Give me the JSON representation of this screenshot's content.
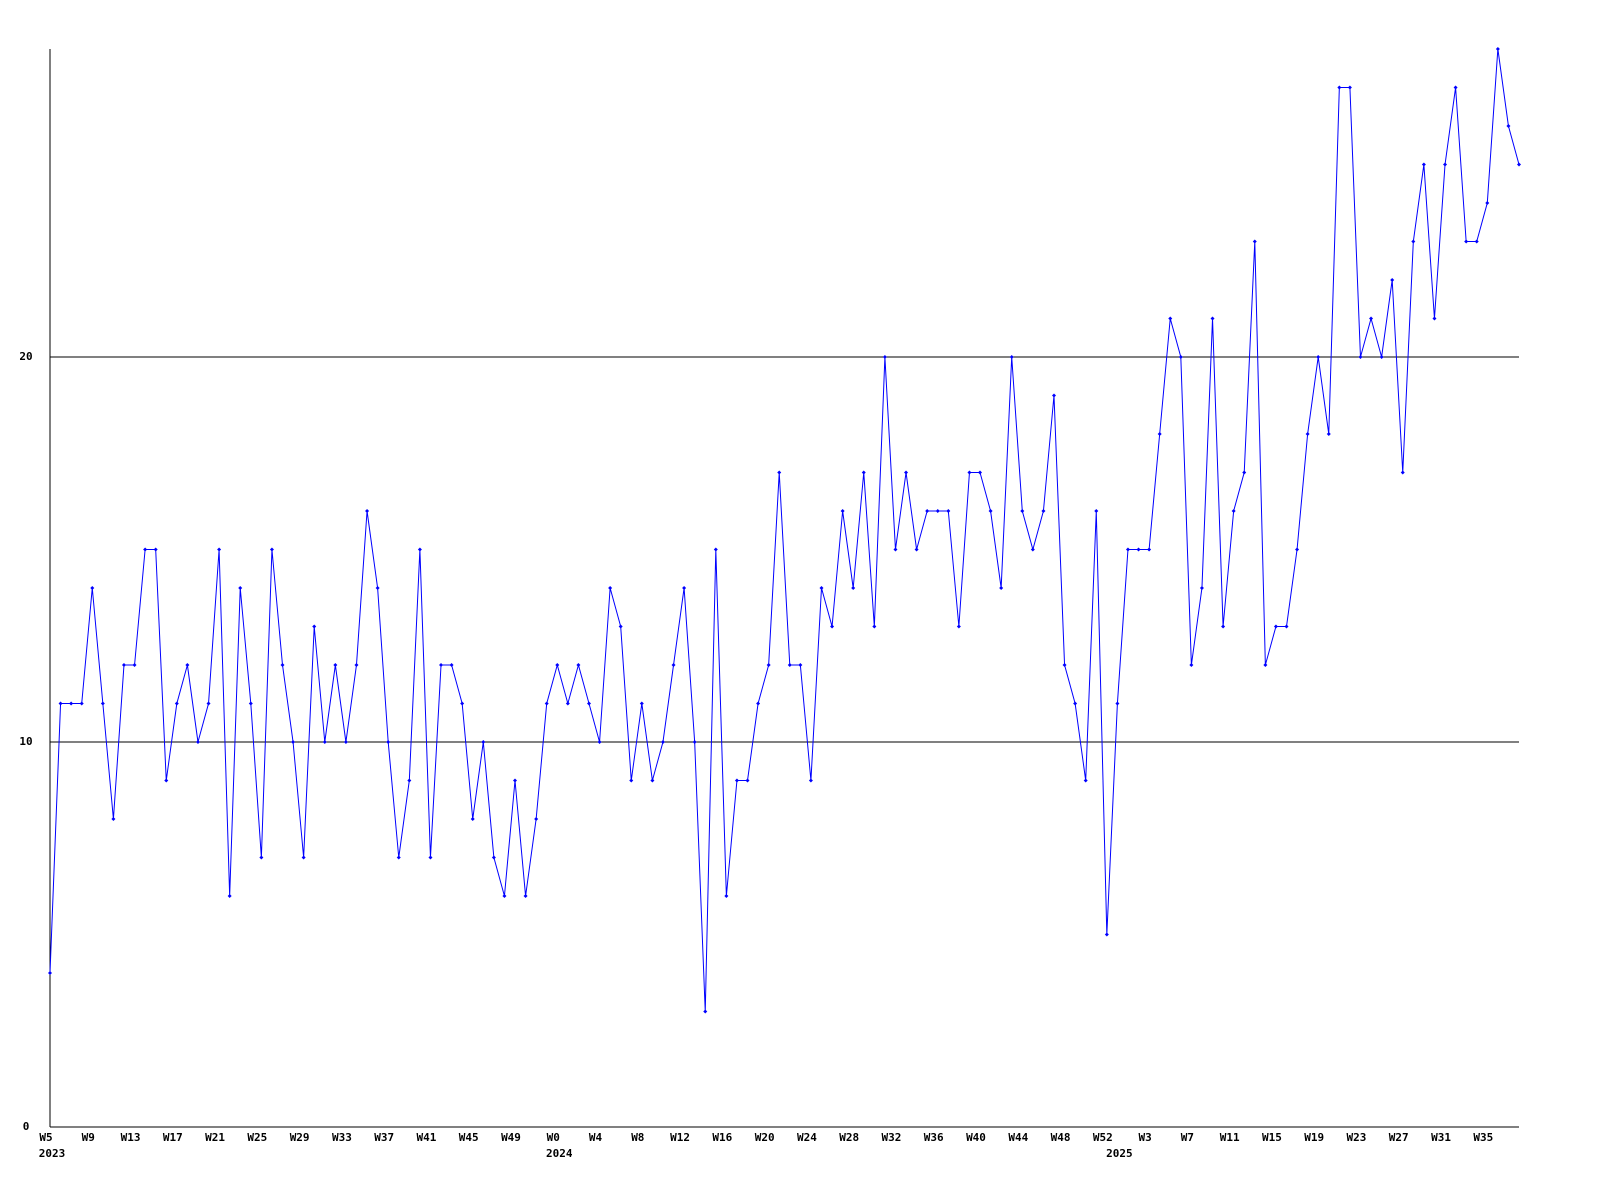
{
  "chart_data": {
    "type": "line",
    "categories": [
      "W5",
      null,
      null,
      null,
      "W9",
      null,
      null,
      null,
      "W13",
      null,
      null,
      null,
      "W17",
      null,
      null,
      null,
      "W21",
      null,
      null,
      null,
      "W25",
      null,
      null,
      null,
      "W29",
      null,
      null,
      null,
      "W33",
      null,
      null,
      null,
      "W37",
      null,
      null,
      null,
      "W41",
      null,
      null,
      null,
      "W45",
      null,
      null,
      null,
      "W49",
      null,
      null,
      null,
      "W0",
      null,
      null,
      null,
      "W4",
      null,
      null,
      null,
      "W8",
      null,
      null,
      null,
      "W12",
      null,
      null,
      null,
      "W16",
      null,
      null,
      null,
      "W20",
      null,
      null,
      null,
      "W24",
      null,
      null,
      null,
      "W28",
      null,
      null,
      null,
      "W32",
      null,
      null,
      null,
      "W36",
      null,
      null,
      null,
      "W40",
      null,
      null,
      null,
      "W44",
      null,
      null,
      null,
      "W48",
      null,
      null,
      null,
      "W52",
      null,
      null,
      null,
      "W3",
      null,
      null,
      null,
      "W7",
      null,
      null,
      null,
      "W11",
      null,
      null,
      null,
      "W15",
      null,
      null,
      null,
      "W19",
      null,
      null,
      null,
      "W23",
      null,
      null,
      null,
      "W27",
      null,
      null,
      null,
      "W31",
      null,
      null,
      null,
      "W35",
      null,
      null,
      null
    ],
    "year_labels": [
      "2023",
      null,
      null,
      null,
      null,
      null,
      null,
      null,
      null,
      null,
      null,
      null,
      null,
      null,
      null,
      null,
      null,
      null,
      null,
      null,
      null,
      null,
      null,
      null,
      null,
      null,
      null,
      null,
      null,
      null,
      null,
      null,
      null,
      null,
      null,
      null,
      null,
      null,
      null,
      null,
      null,
      null,
      null,
      null,
      null,
      null,
      null,
      null,
      "2024",
      null,
      null,
      null,
      null,
      null,
      null,
      null,
      null,
      null,
      null,
      null,
      null,
      null,
      null,
      null,
      null,
      null,
      null,
      null,
      null,
      null,
      null,
      null,
      null,
      null,
      null,
      null,
      null,
      null,
      null,
      null,
      null,
      null,
      null,
      null,
      null,
      null,
      null,
      null,
      null,
      null,
      null,
      null,
      null,
      null,
      null,
      null,
      null,
      null,
      null,
      null,
      null,
      "2025",
      null,
      null,
      null,
      null,
      null,
      null,
      null,
      null,
      null,
      null,
      null,
      null,
      null,
      null,
      null,
      null,
      null,
      null,
      null,
      null,
      null,
      null,
      null,
      null,
      null,
      null,
      null,
      null,
      null,
      null,
      null,
      null,
      null,
      null,
      null,
      null,
      null,
      null
    ],
    "series": [
      {
        "color": "#0000ff",
        "values": [
          4,
          11,
          11,
          11,
          14,
          11,
          8,
          12,
          12,
          15,
          15,
          9,
          11,
          12,
          10,
          11,
          15,
          6,
          14,
          11,
          7,
          15,
          12,
          10,
          7,
          13,
          10,
          12,
          10,
          12,
          16,
          14,
          10,
          7,
          9,
          15,
          7,
          12,
          12,
          11,
          8,
          10,
          7,
          6,
          9,
          6,
          8,
          11,
          12,
          11,
          12,
          11,
          10,
          14,
          13,
          9,
          11,
          9,
          10,
          12,
          14,
          10,
          3,
          15,
          6,
          9,
          9,
          11,
          12,
          17,
          12,
          12,
          9,
          14,
          13,
          16,
          14,
          17,
          13,
          20,
          15,
          17,
          15,
          16,
          16,
          16,
          13,
          17,
          17,
          16,
          14,
          20,
          16,
          15,
          16,
          19,
          12,
          11,
          9,
          16,
          5,
          11,
          15,
          15,
          15,
          18,
          21,
          20,
          12,
          14,
          21,
          13,
          16,
          17,
          23,
          12,
          13,
          13,
          15,
          18,
          20,
          18,
          27,
          27,
          20,
          21,
          20,
          22,
          17,
          23,
          25,
          21,
          25,
          27,
          23,
          23,
          24,
          28,
          26,
          25
        ]
      }
    ],
    "ylim": [
      0,
      28
    ],
    "yticks": [
      0,
      10,
      20
    ],
    "grid": true
  }
}
